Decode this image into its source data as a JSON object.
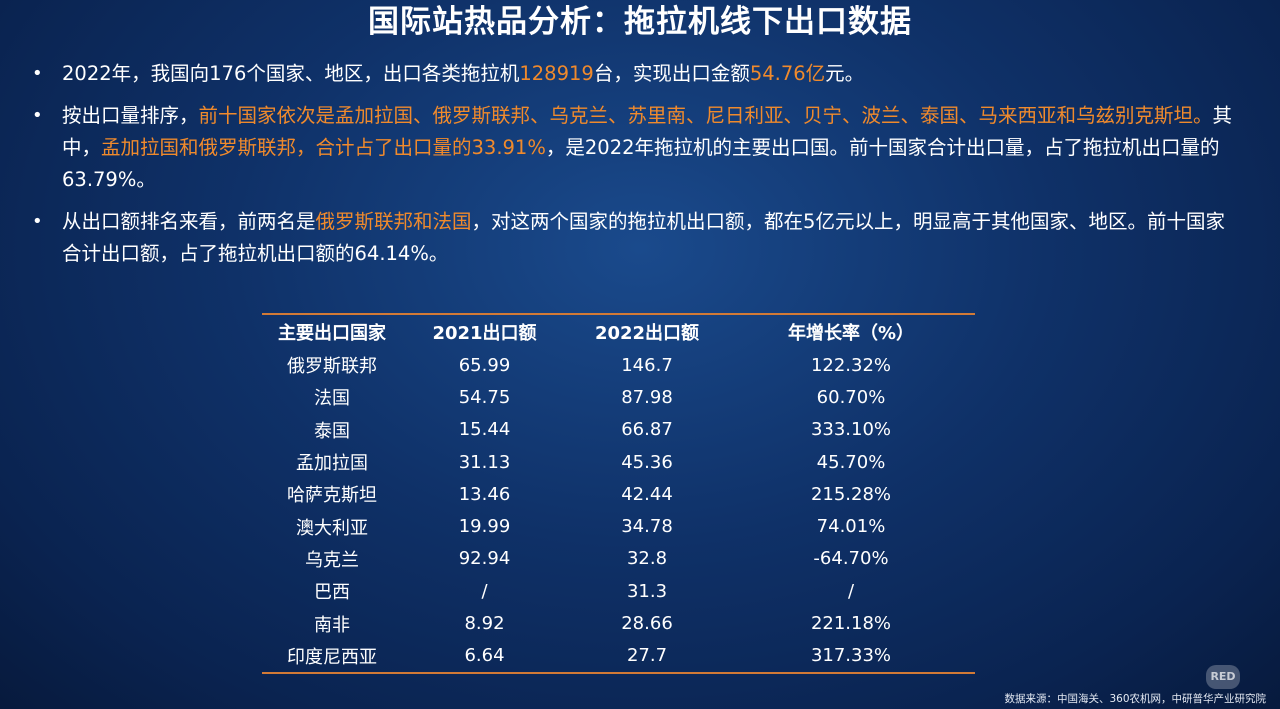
{
  "title": "国际站热品分析：拖拉机线下出口数据",
  "bullet_marker": "•",
  "bullets": [
    {
      "segments": [
        {
          "text": "2022年，我国向176个国家、地区，出口各类拖拉机",
          "hl": false
        },
        {
          "text": "128919",
          "hl": true
        },
        {
          "text": "台，实现出口金额",
          "hl": false
        },
        {
          "text": "54.76亿",
          "hl": true
        },
        {
          "text": "元。",
          "hl": false
        }
      ]
    },
    {
      "segments": [
        {
          "text": "按出口量排序，",
          "hl": false
        },
        {
          "text": "前十国家依次是孟加拉国、俄罗斯联邦、乌克兰、苏里南、尼日利亚、贝宁、波兰、泰国、马来西亚和乌兹别克斯坦。",
          "hl": true
        },
        {
          "text": "其中，",
          "hl": false
        },
        {
          "text": "孟加拉国和俄罗斯联邦，合计占了出口量的33.91%",
          "hl": true
        },
        {
          "text": "，是2022年拖拉机的主要出口国。前十国家合计出口量，占了拖拉机出口量的63.79%。",
          "hl": false
        }
      ]
    },
    {
      "segments": [
        {
          "text": "从出口额排名来看，前两名是",
          "hl": false
        },
        {
          "text": "俄罗斯联邦和法国",
          "hl": true
        },
        {
          "text": "，对这两个国家的拖拉机出口额，都在5亿元以上，明显高于其他国家、地区。前十国家合计出口额，占了拖拉机出口额的64.14%。",
          "hl": false
        }
      ]
    }
  ],
  "table": {
    "headers": [
      "主要出口国家",
      "2021出口额",
      "2022出口额",
      "年增长率（%）"
    ],
    "rows": [
      [
        "俄罗斯联邦",
        "65.99",
        "146.7",
        "122.32%"
      ],
      [
        "法国",
        "54.75",
        "87.98",
        "60.70%"
      ],
      [
        "泰国",
        "15.44",
        "66.87",
        "333.10%"
      ],
      [
        "孟加拉国",
        "31.13",
        "45.36",
        "45.70%"
      ],
      [
        "哈萨克斯坦",
        "13.46",
        "42.44",
        "215.28%"
      ],
      [
        "澳大利亚",
        "19.99",
        "34.78",
        "74.01%"
      ],
      [
        "乌克兰",
        "92.94",
        "32.8",
        "-64.70%"
      ],
      [
        "巴西",
        "/",
        "31.3",
        "/"
      ],
      [
        "南非",
        "8.92",
        "28.66",
        "221.18%"
      ],
      [
        "印度尼西亚",
        "6.64",
        "27.7",
        "317.33%"
      ]
    ]
  },
  "source": "数据来源：中国海关、360农机网，中研普华产业研究院",
  "watermark": "小红书",
  "colors": {
    "highlight": "#f08a2c",
    "rule": "#d27a36",
    "background": "#0f3168"
  }
}
